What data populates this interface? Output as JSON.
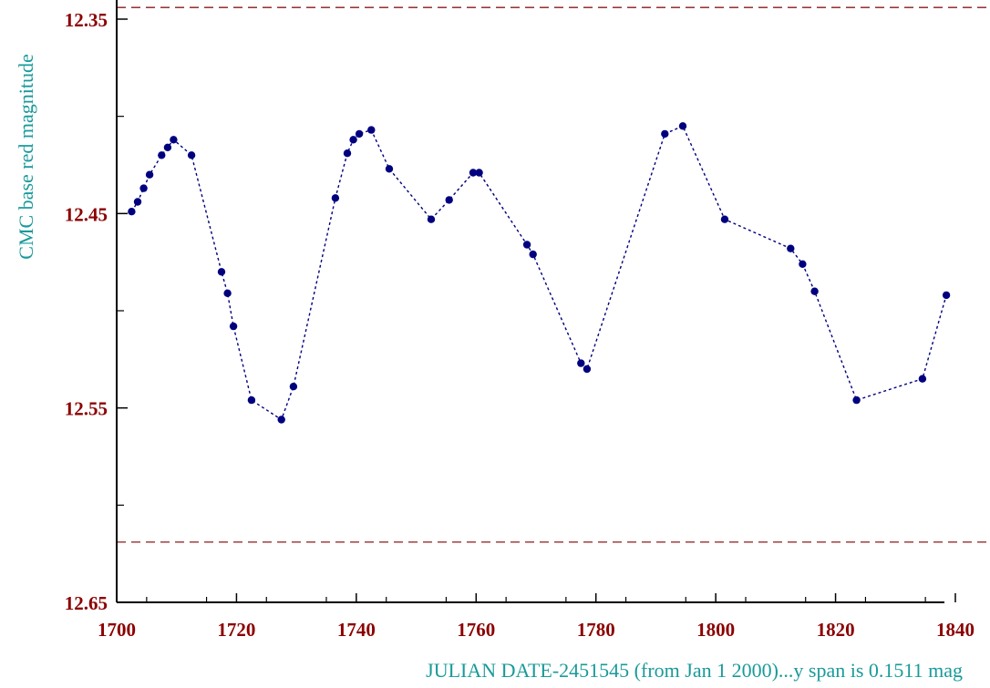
{
  "chart_data": {
    "type": "scatter",
    "xlabel": "JULIAN DATE-2451545 (from Jan 1 2000)...y span is 0.1511 mag",
    "ylabel": "CMC base red magnitude",
    "xlim": [
      1700,
      1842
    ],
    "ylim": [
      12.65,
      12.34
    ],
    "y_inverted": true,
    "x_ticks": [
      1700,
      1720,
      1740,
      1760,
      1780,
      1800,
      1820,
      1840
    ],
    "x_tick_labels": [
      "1700",
      "1720",
      "1740",
      "1760",
      "1780",
      "1800",
      "1820",
      "1840"
    ],
    "y_ticks": [
      12.35,
      12.45,
      12.55,
      12.65
    ],
    "y_tick_labels": [
      "12.35",
      "12.45",
      "12.55",
      "12.65"
    ],
    "reference_lines": [
      12.344,
      12.619
    ],
    "connect_points": true,
    "grid": false,
    "colors": {
      "points": "#00007f",
      "line": "#00007f",
      "reference": "#8b1a1a",
      "tick_labels": "#8b0000",
      "axis_titles": "#1a9a9a"
    },
    "series": [
      {
        "x": [
          1702.5,
          1703.5,
          1704.5,
          1705.5,
          1707.5,
          1708.5,
          1709.5,
          1712.5,
          1717.5,
          1718.5,
          1719.5,
          1722.5,
          1727.5,
          1729.5,
          1736.5,
          1738.5,
          1739.5,
          1740.5,
          1742.5,
          1745.5,
          1752.5,
          1755.5,
          1759.5,
          1760.5,
          1768.5,
          1769.5,
          1777.5,
          1778.5,
          1791.5,
          1794.5,
          1801.5,
          1812.5,
          1814.5,
          1816.5,
          1823.5,
          1834.5,
          1838.5
        ],
        "y": [
          12.449,
          12.444,
          12.437,
          12.43,
          12.42,
          12.416,
          12.412,
          12.42,
          12.48,
          12.491,
          12.508,
          12.546,
          12.556,
          12.539,
          12.442,
          12.419,
          12.412,
          12.409,
          12.407,
          12.427,
          12.453,
          12.443,
          12.429,
          12.429,
          12.466,
          12.471,
          12.527,
          12.53,
          12.409,
          12.405,
          12.453,
          12.468,
          12.476,
          12.49,
          12.546,
          12.535,
          12.492
        ]
      }
    ]
  }
}
